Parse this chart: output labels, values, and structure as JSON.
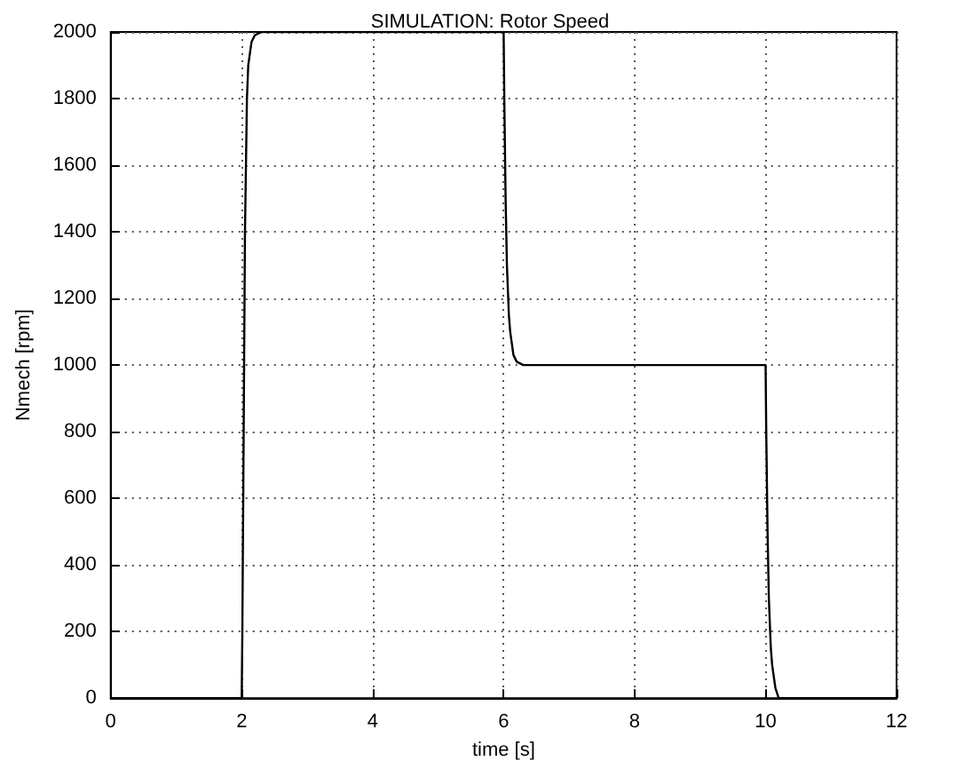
{
  "chart_data": {
    "type": "line",
    "title": "SIMULATION: Rotor Speed",
    "xlabel": "time [s]",
    "ylabel": "Nmech [rpm]",
    "series": [
      {
        "color": "#000000",
        "x": [
          0,
          2,
          2.01,
          2.03,
          2.05,
          2.08,
          2.1,
          2.15,
          2.2,
          2.3,
          6,
          6.01,
          6.03,
          6.05,
          6.08,
          6.1,
          6.15,
          6.2,
          6.3,
          6.4,
          10,
          10.01,
          10.03,
          10.05,
          10.08,
          10.1,
          10.15,
          10.2,
          12
        ],
        "values": [
          0,
          0,
          200,
          800,
          1400,
          1800,
          1900,
          1970,
          1990,
          2000,
          2000,
          1800,
          1500,
          1300,
          1150,
          1100,
          1030,
          1010,
          1000,
          1000,
          1000,
          800,
          500,
          300,
          150,
          100,
          30,
          0,
          0
        ]
      }
    ],
    "xlim": [
      0,
      12
    ],
    "xticks": [
      0,
      2,
      4,
      6,
      8,
      10,
      12
    ],
    "ylim": [
      0,
      2000
    ],
    "yticks": [
      0,
      200,
      400,
      600,
      800,
      1000,
      1200,
      1400,
      1600,
      1800,
      2000
    ],
    "grid": true,
    "marker": "none",
    "line_style": "solid"
  }
}
